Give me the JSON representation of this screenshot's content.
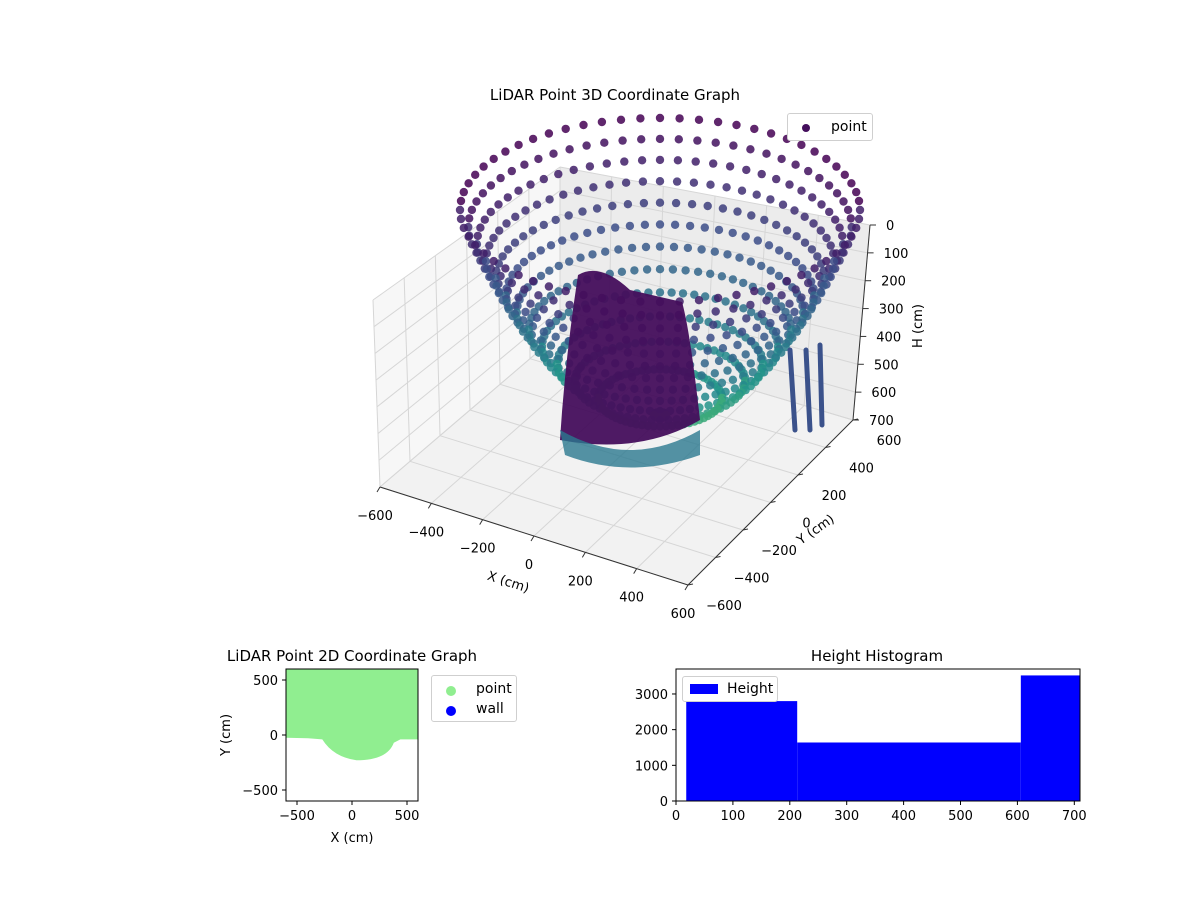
{
  "chart_data": [
    {
      "id": "lidar3d",
      "type": "scatter",
      "title": "LiDAR Point 3D Coordinate Graph",
      "xlabel": "X (cm)",
      "ylabel": "Y (cm)",
      "zlabel": "H (cm)",
      "x_ticks": [
        "−600",
        "−400",
        "−200",
        "0",
        "200",
        "400",
        "600"
      ],
      "y_ticks": [
        "−600",
        "−400",
        "−200",
        "0",
        "200",
        "400",
        "600"
      ],
      "z_ticks": [
        "0",
        "100",
        "200",
        "300",
        "400",
        "500",
        "600",
        "700"
      ],
      "xlim": [
        -600,
        600
      ],
      "ylim": [
        -600,
        600
      ],
      "zlim": [
        0,
        700
      ],
      "z_inverted": true,
      "colormap": "viridis",
      "legend": [
        "point"
      ],
      "legend_position": "upper-right"
    },
    {
      "id": "lidar2d",
      "type": "scatter",
      "title": "LiDAR Point 2D Coordinate Graph",
      "xlabel": "X (cm)",
      "ylabel": "Y (cm)",
      "x_ticks": [
        "−500",
        "0",
        "500"
      ],
      "y_ticks": [
        "500",
        "0",
        "−500"
      ],
      "xlim": [
        -600,
        600
      ],
      "ylim": [
        -600,
        600
      ],
      "series": [
        {
          "name": "point",
          "color": "#90ee90"
        },
        {
          "name": "wall",
          "color": "#0000ff"
        }
      ],
      "legend_position": "outside-right"
    },
    {
      "id": "histogram",
      "type": "bar",
      "title": "Height Histogram",
      "bins": [
        {
          "start": 18,
          "end": 213,
          "count": 2800
        },
        {
          "start": 213,
          "end": 606,
          "count": 1640
        },
        {
          "start": 606,
          "end": 710,
          "count": 3520
        }
      ],
      "series": [
        {
          "name": "Height",
          "color": "#0000ff"
        }
      ],
      "x_ticks": [
        "0",
        "100",
        "200",
        "300",
        "400",
        "500",
        "600",
        "700"
      ],
      "y_ticks": [
        "0",
        "1000",
        "2000",
        "3000"
      ],
      "xlim": [
        0,
        710
      ],
      "ylim": [
        0,
        3700
      ],
      "legend_position": "upper-left"
    }
  ]
}
